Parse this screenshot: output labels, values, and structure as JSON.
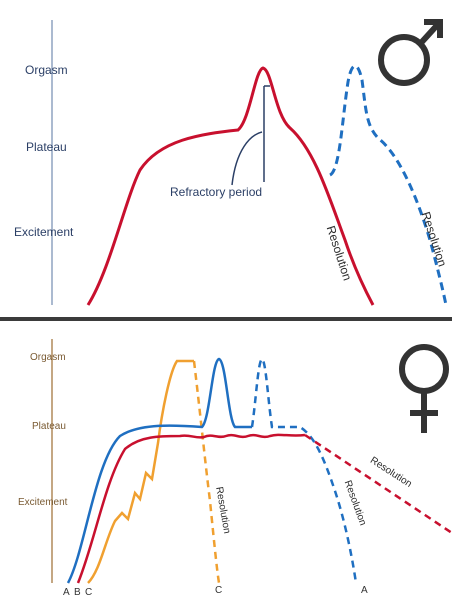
{
  "male": {
    "levels": [
      "Orgasm",
      "Plateau",
      "Excitement"
    ],
    "refractory_label": "Refractory period",
    "resolution_label": "Resolution",
    "resolution_dashed_label": "Resolution",
    "colors": {
      "solid": "#c8102e",
      "dashed": "#1f6fc1",
      "axis": "#8fa3c0",
      "symbol": "#333333"
    },
    "symbol": "male-symbol-icon"
  },
  "female": {
    "levels": [
      "Orgasm",
      "Plateau",
      "Excitement"
    ],
    "resolution_c": "Resolution",
    "resolution_a": "Resolution",
    "resolution_b": "Resolution",
    "curve_labels": {
      "a": "A",
      "b": "B",
      "c": "C"
    },
    "bottom_c": "C",
    "bottom_a": "A",
    "colors": {
      "a": "#1f6fc1",
      "b": "#c8102e",
      "c": "#f0a030",
      "axis": "#b08a5a",
      "symbol": "#333333"
    },
    "symbol": "female-symbol-icon"
  }
}
